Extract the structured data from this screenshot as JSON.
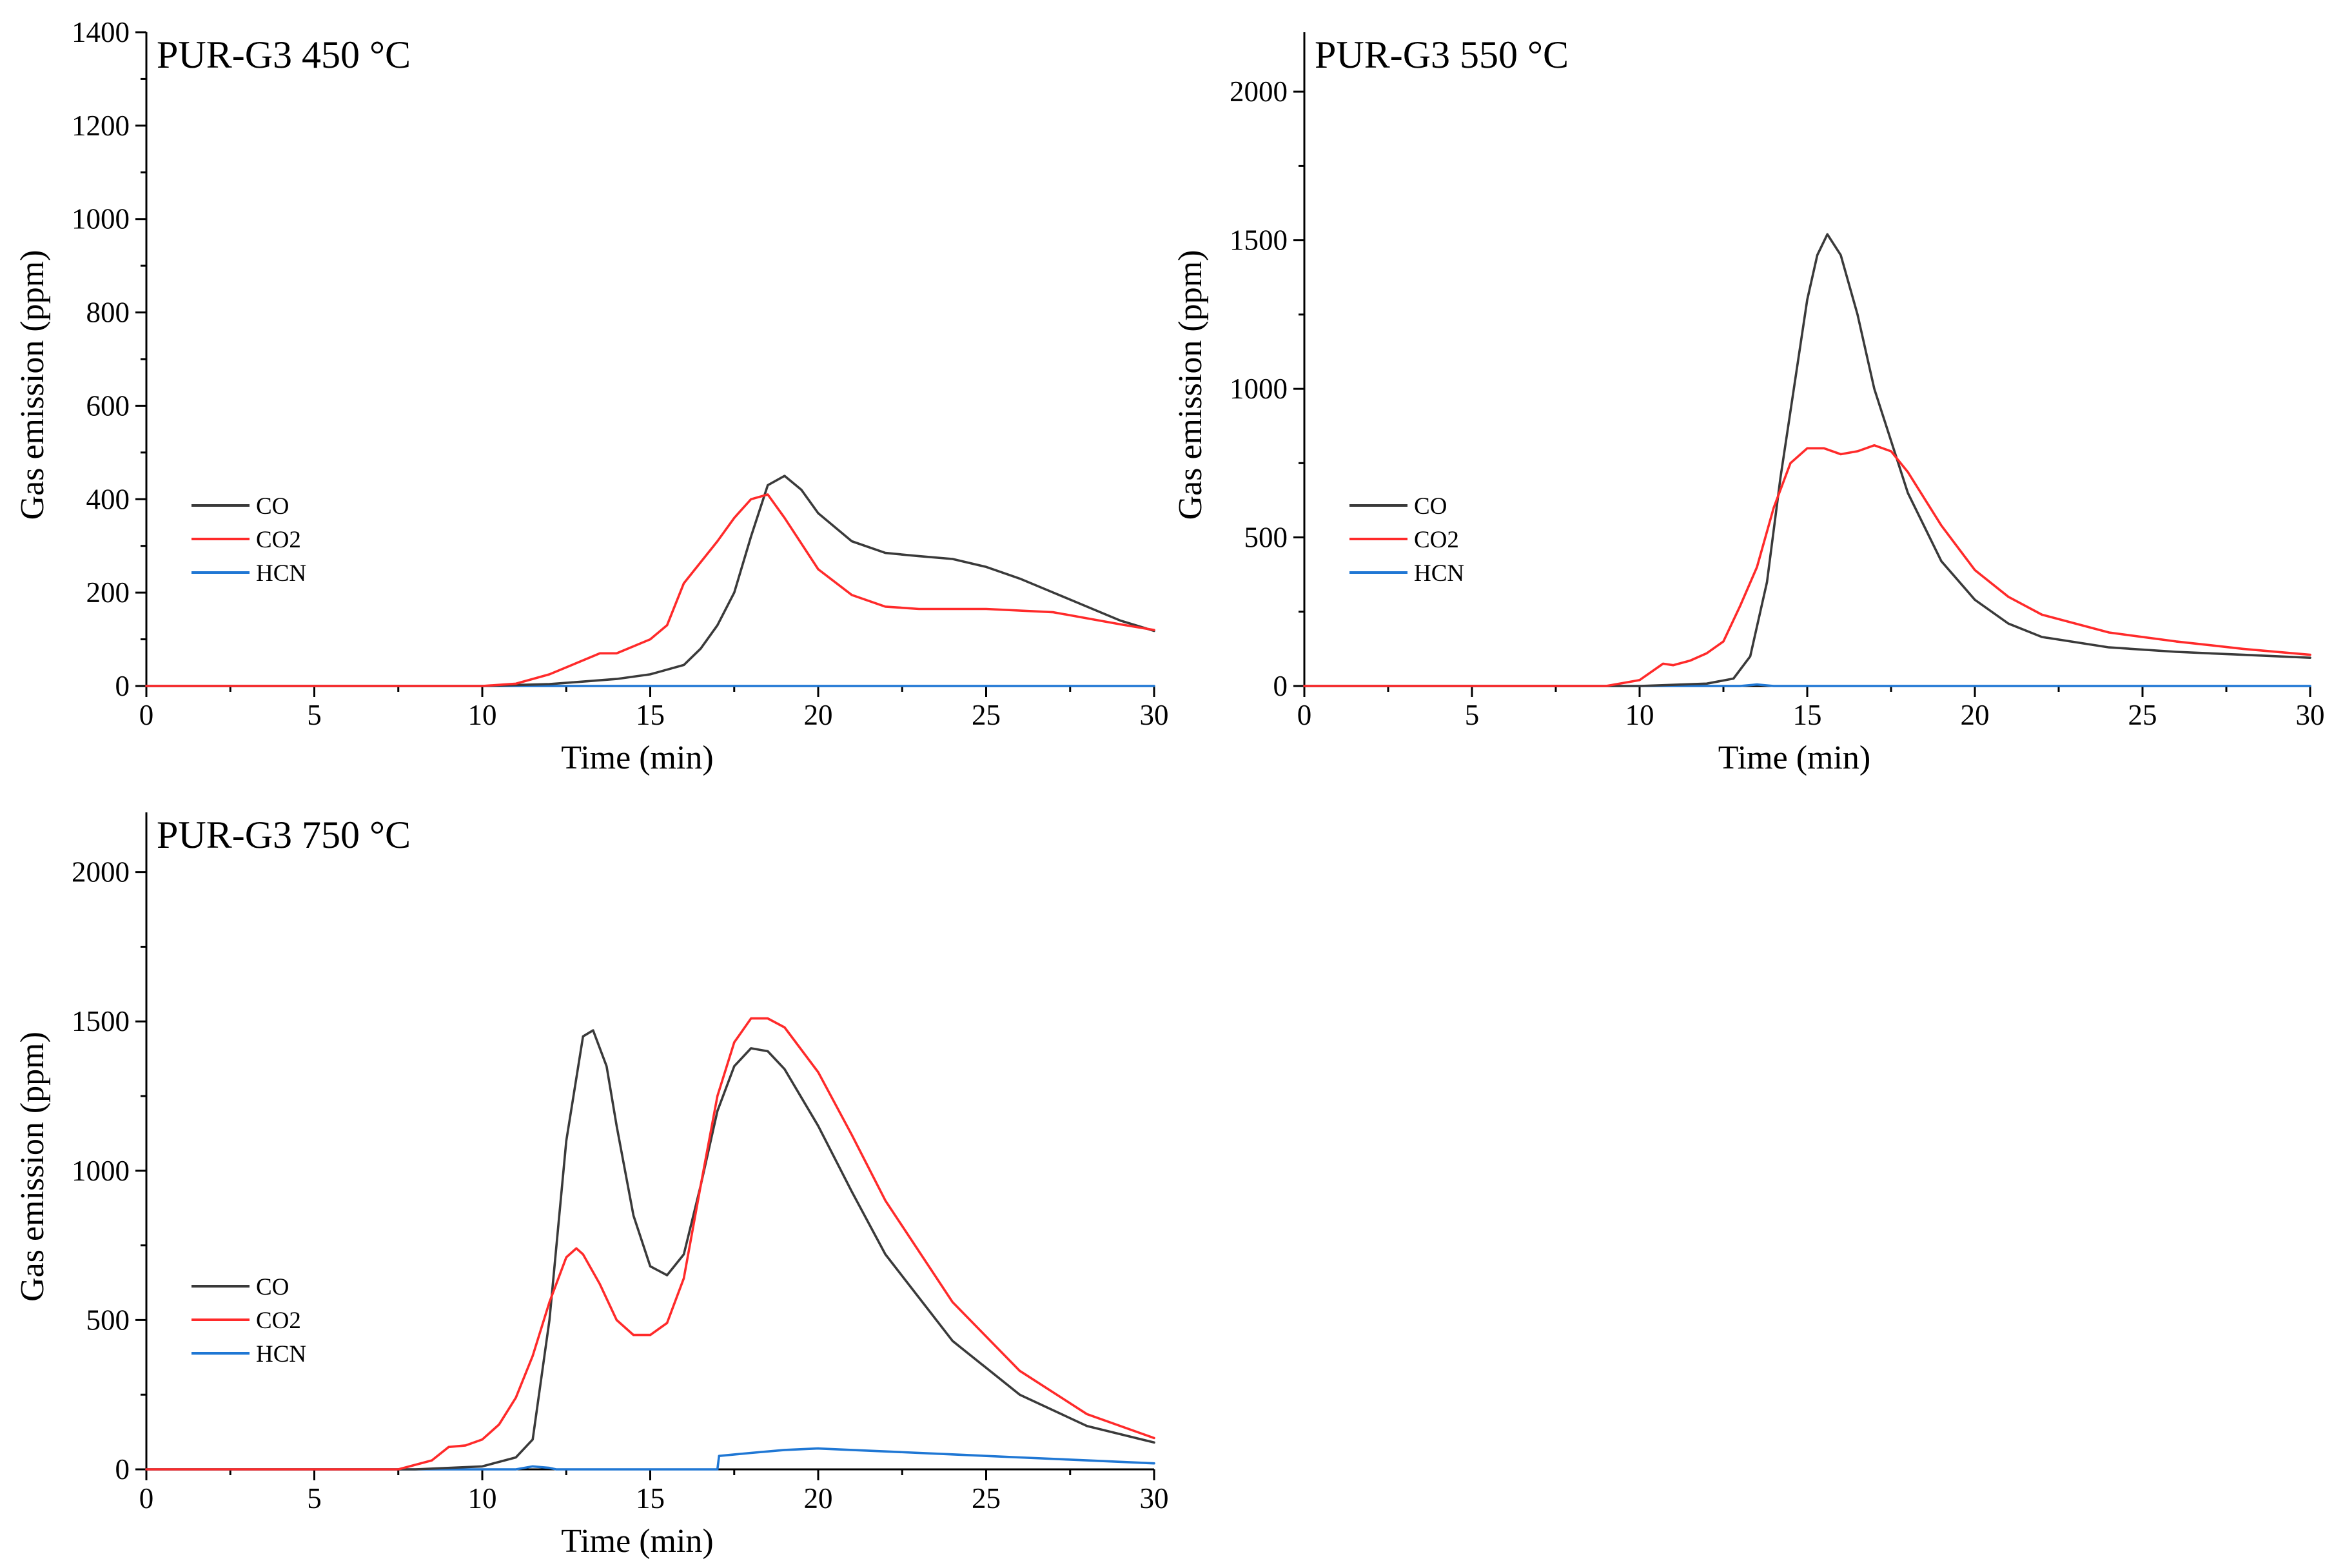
{
  "colors": {
    "CO": "#3a3a3a",
    "CO2": "#ff2a2a",
    "HCN": "#1f77d4",
    "axis": "#000000"
  },
  "chart_data": [
    {
      "type": "line",
      "title": "PUR-G3 450 °C",
      "xlabel": "Time (min)",
      "ylabel": "Gas emission (ppm)",
      "xlim": [
        0,
        30
      ],
      "ylim": [
        0,
        1400
      ],
      "x_ticks": [
        0,
        5,
        10,
        15,
        20,
        25,
        30
      ],
      "x_tick_labels": [
        "0",
        "5",
        "10",
        "15",
        "20",
        "25",
        "30"
      ],
      "y_ticks": [
        0,
        200,
        400,
        600,
        800,
        1000,
        1200,
        1400
      ],
      "y_tick_labels": [
        "0",
        "200",
        "400",
        "600",
        "800",
        "1000",
        "1200",
        "1400"
      ],
      "legend": [
        "CO",
        "CO2",
        "HCN"
      ],
      "legend_position": "middle-left",
      "series": [
        {
          "name": "CO",
          "x": [
            0,
            10,
            12,
            14,
            15,
            16,
            16.5,
            17,
            17.5,
            18,
            18.5,
            19,
            19.5,
            20,
            21,
            22,
            23,
            24,
            25,
            26,
            27,
            28,
            29,
            30
          ],
          "y": [
            0,
            0,
            4,
            15,
            25,
            45,
            80,
            130,
            200,
            320,
            430,
            450,
            420,
            370,
            310,
            285,
            278,
            272,
            255,
            230,
            200,
            170,
            140,
            118
          ]
        },
        {
          "name": "CO2",
          "x": [
            0,
            10,
            11,
            12,
            13,
            13.5,
            14,
            15,
            15.5,
            16,
            17,
            17.5,
            18,
            18.5,
            19,
            20,
            21,
            22,
            23,
            25,
            27,
            28,
            29,
            30
          ],
          "y": [
            0,
            0,
            5,
            25,
            55,
            70,
            70,
            100,
            130,
            220,
            310,
            360,
            400,
            410,
            360,
            250,
            195,
            170,
            165,
            165,
            158,
            145,
            132,
            120
          ]
        },
        {
          "name": "HCN",
          "x": [
            0,
            30
          ],
          "y": [
            0,
            0
          ]
        }
      ]
    },
    {
      "type": "line",
      "title": "PUR-G3 550 °C",
      "xlabel": "Time (min)",
      "ylabel": "Gas emission (ppm)",
      "xlim": [
        0,
        30
      ],
      "ylim": [
        0,
        2200
      ],
      "x_ticks": [
        0,
        5,
        10,
        15,
        20,
        25,
        30
      ],
      "x_tick_labels": [
        "0",
        "5",
        "10",
        "15",
        "20",
        "25",
        "30"
      ],
      "y_ticks": [
        0,
        500,
        1000,
        1500,
        2000
      ],
      "y_tick_labels": [
        "0",
        "500",
        "1000",
        "1500",
        "2000"
      ],
      "legend": [
        "CO",
        "CO2",
        "HCN"
      ],
      "legend_position": "middle-left",
      "series": [
        {
          "name": "CO",
          "x": [
            0,
            10,
            12,
            12.8,
            13.3,
            13.8,
            14.2,
            14.6,
            15,
            15.3,
            15.6,
            16,
            16.5,
            17,
            18,
            19,
            20,
            21,
            22,
            24,
            26,
            28,
            30
          ],
          "y": [
            0,
            0,
            8,
            25,
            100,
            350,
            700,
            1000,
            1300,
            1450,
            1520,
            1450,
            1250,
            1000,
            650,
            420,
            290,
            210,
            165,
            130,
            115,
            105,
            95
          ]
        },
        {
          "name": "CO2",
          "x": [
            0,
            9,
            10,
            10.7,
            11,
            11.5,
            12,
            12.5,
            13,
            13.5,
            14,
            14.5,
            15,
            15.5,
            16,
            16.5,
            17,
            17.5,
            18,
            19,
            20,
            21,
            22,
            24,
            26,
            28,
            30
          ],
          "y": [
            0,
            0,
            20,
            75,
            70,
            85,
            110,
            150,
            270,
            400,
            600,
            750,
            800,
            800,
            780,
            790,
            810,
            790,
            720,
            540,
            390,
            300,
            240,
            180,
            150,
            125,
            105
          ]
        },
        {
          "name": "HCN",
          "x": [
            0,
            13,
            13.5,
            14,
            30
          ],
          "y": [
            0,
            0,
            5,
            0,
            0
          ]
        }
      ]
    },
    {
      "type": "line",
      "title": "PUR-G3 750 °C",
      "xlabel": "Time (min)",
      "ylabel": "Gas emission (ppm)",
      "xlim": [
        0,
        30
      ],
      "ylim": [
        0,
        2200
      ],
      "x_ticks": [
        0,
        5,
        10,
        15,
        20,
        25,
        30
      ],
      "x_tick_labels": [
        "0",
        "5",
        "10",
        "15",
        "20",
        "25",
        "30"
      ],
      "y_ticks": [
        0,
        500,
        1000,
        1500,
        2000
      ],
      "y_tick_labels": [
        "0",
        "500",
        "1000",
        "1500",
        "2000"
      ],
      "legend": [
        "CO",
        "CO2",
        "HCN"
      ],
      "legend_position": "middle-left",
      "series": [
        {
          "name": "CO",
          "x": [
            0,
            8,
            10,
            11,
            11.5,
            12,
            12.5,
            13,
            13.3,
            13.7,
            14,
            14.5,
            15,
            15.5,
            16,
            16.5,
            17,
            17.5,
            18,
            18.5,
            19,
            20,
            21,
            22,
            24,
            26,
            28,
            30
          ],
          "y": [
            0,
            0,
            10,
            40,
            100,
            500,
            1100,
            1450,
            1470,
            1350,
            1150,
            850,
            680,
            650,
            720,
            950,
            1200,
            1350,
            1410,
            1400,
            1340,
            1150,
            930,
            720,
            430,
            250,
            145,
            90
          ]
        },
        {
          "name": "CO2",
          "x": [
            0,
            7.5,
            8.5,
            9,
            9.5,
            10,
            10.5,
            11,
            11.5,
            12,
            12.5,
            12.8,
            13,
            13.5,
            14,
            14.5,
            15,
            15.5,
            16,
            16.5,
            17,
            17.5,
            18,
            18.5,
            19,
            20,
            21,
            22,
            24,
            26,
            28,
            30
          ],
          "y": [
            0,
            0,
            30,
            75,
            80,
            100,
            150,
            240,
            380,
            560,
            710,
            740,
            720,
            620,
            500,
            450,
            450,
            490,
            640,
            950,
            1250,
            1430,
            1510,
            1510,
            1480,
            1330,
            1120,
            900,
            560,
            330,
            185,
            105
          ]
        },
        {
          "name": "HCN",
          "x": [
            0,
            11,
            11.5,
            12,
            12.2,
            17,
            17.05,
            18,
            19,
            20,
            21,
            22,
            24,
            26,
            28,
            30
          ],
          "y": [
            0,
            0,
            10,
            5,
            0,
            0,
            45,
            55,
            65,
            70,
            65,
            60,
            50,
            40,
            30,
            20
          ]
        }
      ]
    }
  ]
}
